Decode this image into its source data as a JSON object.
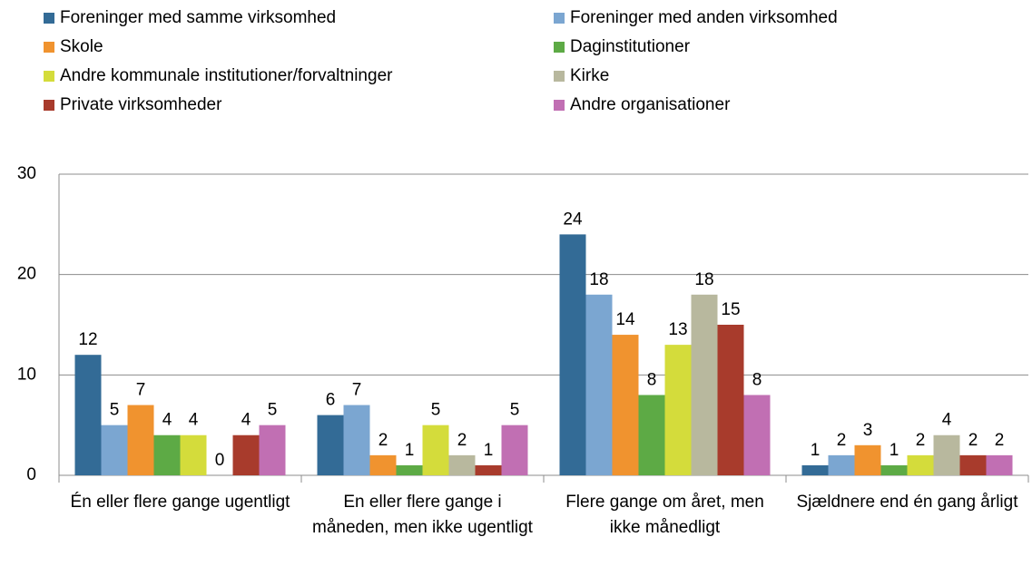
{
  "chart_data": {
    "type": "bar",
    "categories": [
      "Én eller flere gange ugentligt",
      "En eller flere gange i måneden, men ikke ugentligt",
      "Flere gange om året, men ikke månedligt",
      "Sjældnere end én gang årligt"
    ],
    "series": [
      {
        "name": "Foreninger med samme virksomhed",
        "color": "#336b96",
        "values": [
          12,
          6,
          24,
          1
        ]
      },
      {
        "name": "Foreninger med anden virksomhed",
        "color": "#7ba6d1",
        "values": [
          5,
          7,
          18,
          2
        ]
      },
      {
        "name": "Skole",
        "color": "#f0932f",
        "values": [
          7,
          2,
          14,
          3
        ]
      },
      {
        "name": "Daginstitutioner",
        "color": "#5daa45",
        "values": [
          4,
          1,
          8,
          1
        ]
      },
      {
        "name": "Andre kommunale institutioner/forvaltninger",
        "color": "#d4dc3b",
        "values": [
          4,
          5,
          13,
          2
        ]
      },
      {
        "name": "Kirke",
        "color": "#b8b89e",
        "values": [
          0,
          2,
          18,
          4
        ]
      },
      {
        "name": "Private virksomheder",
        "color": "#a83b2c",
        "values": [
          4,
          1,
          15,
          2
        ]
      },
      {
        "name": "Andre organisationer",
        "color": "#c16fb3",
        "values": [
          5,
          5,
          8,
          2
        ]
      }
    ],
    "ylim": [
      0,
      30
    ],
    "yticks": [
      0,
      10,
      20,
      30
    ],
    "grid": true,
    "legend": "top"
  }
}
